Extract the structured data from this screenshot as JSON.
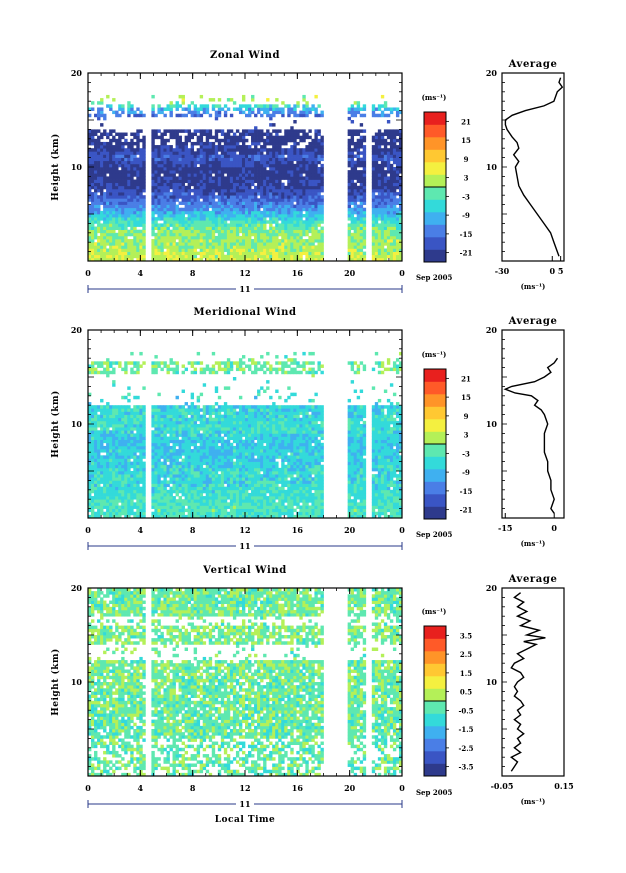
{
  "chart_data": [
    {
      "type": "heatmap",
      "title": "Zonal Wind",
      "ylabel": "Height (km)",
      "xlabel": "",
      "ylim": [
        0,
        20
      ],
      "xlim": [
        0,
        24
      ],
      "x_ticks": [
        "0",
        "4",
        "8",
        "12",
        "16",
        "20",
        "0"
      ],
      "x_tick_values": [
        0,
        4,
        8,
        12,
        16,
        20,
        24
      ],
      "y_ticks": [
        "20",
        "10"
      ],
      "day_label": "11",
      "date_label": "Sep 2005",
      "colorbar": {
        "unit": "(ms⁻¹)",
        "ticks": [
          "21",
          "15",
          "9",
          "3",
          "-3",
          "-9",
          "-15",
          "-21"
        ],
        "range": [
          -24,
          24
        ]
      },
      "data_gaps_hours": [
        [
          4.4,
          4.9
        ],
        [
          18.0,
          19.8
        ],
        [
          21.3,
          21.6
        ]
      ],
      "profile_by_height_km": [
        {
          "height": 0,
          "value": 4
        },
        {
          "height": 1,
          "value": 2
        },
        {
          "height": 2,
          "value": 1
        },
        {
          "height": 3,
          "value": 0
        },
        {
          "height": 4,
          "value": -3
        },
        {
          "height": 5,
          "value": -9
        },
        {
          "height": 6,
          "value": -14
        },
        {
          "height": 7,
          "value": -18
        },
        {
          "height": 8,
          "value": -21
        },
        {
          "height": 9,
          "value": -22
        },
        {
          "height": 10,
          "value": -22
        },
        {
          "height": 11,
          "value": -17
        },
        {
          "height": 12,
          "value": -22
        },
        {
          "height": 13,
          "value": -23
        },
        {
          "height": 14,
          "value": -22
        },
        {
          "height": 15,
          "value": -18
        },
        {
          "height": 16,
          "value": -12
        },
        {
          "height": 17,
          "value": 1
        },
        {
          "height": 18,
          "value": 3
        }
      ],
      "average_panel": {
        "title": "Average",
        "xlabel": "(ms⁻¹)",
        "x_ticks": [
          "-30",
          "0",
          "5"
        ],
        "xlim": [
          -30,
          7
        ],
        "y_ticks": [
          "20",
          "10"
        ],
        "ylim": [
          0,
          20
        ],
        "line": [
          {
            "height": 0.5,
            "value": 4
          },
          {
            "height": 1,
            "value": 3
          },
          {
            "height": 2,
            "value": 1
          },
          {
            "height": 3,
            "value": -1
          },
          {
            "height": 4,
            "value": -5
          },
          {
            "height": 5,
            "value": -9
          },
          {
            "height": 6,
            "value": -13
          },
          {
            "height": 7,
            "value": -17
          },
          {
            "height": 8,
            "value": -20
          },
          {
            "height": 9,
            "value": -21
          },
          {
            "height": 10,
            "value": -22
          },
          {
            "height": 10.6,
            "value": -20
          },
          {
            "height": 11.3,
            "value": -23
          },
          {
            "height": 12,
            "value": -20
          },
          {
            "height": 12.6,
            "value": -21
          },
          {
            "height": 13.2,
            "value": -24
          },
          {
            "height": 14,
            "value": -27
          },
          {
            "height": 14.5,
            "value": -28
          },
          {
            "height": 15,
            "value": -28
          },
          {
            "height": 15.5,
            "value": -24
          },
          {
            "height": 16,
            "value": -16
          },
          {
            "height": 16.5,
            "value": -5
          },
          {
            "height": 17,
            "value": 1
          },
          {
            "height": 17.5,
            "value": 2
          },
          {
            "height": 18,
            "value": 3
          },
          {
            "height": 18.5,
            "value": 6
          },
          {
            "height": 19,
            "value": 4
          },
          {
            "height": 19.5,
            "value": 5
          }
        ]
      }
    },
    {
      "type": "heatmap",
      "title": "Meridional Wind",
      "ylabel": "Height (km)",
      "xlabel": "",
      "ylim": [
        0,
        20
      ],
      "xlim": [
        0,
        24
      ],
      "x_ticks": [
        "0",
        "4",
        "8",
        "12",
        "16",
        "20",
        "0"
      ],
      "x_tick_values": [
        0,
        4,
        8,
        12,
        16,
        20,
        24
      ],
      "y_ticks": [
        "20",
        "10"
      ],
      "day_label": "11",
      "date_label": "Sep 2005",
      "colorbar": {
        "unit": "(ms⁻¹)",
        "ticks": [
          "21",
          "15",
          "9",
          "3",
          "-3",
          "-9",
          "-15",
          "-21"
        ],
        "range": [
          -24,
          24
        ]
      },
      "data_gaps_hours": [
        [
          4.4,
          4.9
        ],
        [
          18.0,
          19.8
        ],
        [
          21.3,
          21.6
        ]
      ],
      "profile_by_height_km": [
        {
          "height": 0,
          "value": -4
        },
        {
          "height": 1,
          "value": -3
        },
        {
          "height": 2,
          "value": -4
        },
        {
          "height": 3,
          "value": -5
        },
        {
          "height": 4,
          "value": -6
        },
        {
          "height": 5,
          "value": -6
        },
        {
          "height": 6,
          "value": -7
        },
        {
          "height": 7,
          "value": -7
        },
        {
          "height": 8,
          "value": -8
        },
        {
          "height": 9,
          "value": -6
        },
        {
          "height": 10,
          "value": -5
        },
        {
          "height": 11,
          "value": -6
        },
        {
          "height": 12,
          "value": -6
        },
        {
          "height": 13,
          "value": -5
        },
        {
          "height": 14,
          "value": -4
        },
        {
          "height": 15,
          "value": -3
        },
        {
          "height": 16,
          "value": -1
        },
        {
          "height": 17,
          "value": -2
        },
        {
          "height": 18,
          "value": -1
        }
      ],
      "average_panel": {
        "title": "Average",
        "xlabel": "(ms⁻¹)",
        "x_ticks": [
          "-15",
          "0"
        ],
        "xlim": [
          -16,
          3
        ],
        "y_ticks": [
          "20",
          "10"
        ],
        "ylim": [
          0,
          20
        ],
        "line": [
          {
            "height": 0.5,
            "value": 0
          },
          {
            "height": 1,
            "value": -1
          },
          {
            "height": 2,
            "value": 0
          },
          {
            "height": 3,
            "value": -1
          },
          {
            "height": 4,
            "value": -1
          },
          {
            "height": 5,
            "value": -2
          },
          {
            "height": 6,
            "value": -2
          },
          {
            "height": 7,
            "value": -3
          },
          {
            "height": 8,
            "value": -3
          },
          {
            "height": 9,
            "value": -3
          },
          {
            "height": 10,
            "value": -2
          },
          {
            "height": 11,
            "value": -3
          },
          {
            "height": 11.5,
            "value": -4
          },
          {
            "height": 12,
            "value": -6
          },
          {
            "height": 12.5,
            "value": -5
          },
          {
            "height": 13,
            "value": -7
          },
          {
            "height": 13.3,
            "value": -12
          },
          {
            "height": 13.7,
            "value": -15
          },
          {
            "height": 14,
            "value": -13
          },
          {
            "height": 14.5,
            "value": -6
          },
          {
            "height": 15,
            "value": -3
          },
          {
            "height": 15.5,
            "value": -1
          },
          {
            "height": 16,
            "value": -2
          },
          {
            "height": 16.5,
            "value": 0
          },
          {
            "height": 17,
            "value": 1
          }
        ]
      }
    },
    {
      "type": "heatmap",
      "title": "Vertical Wind",
      "ylabel": "Height (km)",
      "xlabel": "Local Time",
      "ylim": [
        0,
        20
      ],
      "xlim": [
        0,
        24
      ],
      "x_ticks": [
        "0",
        "4",
        "8",
        "12",
        "16",
        "20",
        "0"
      ],
      "x_tick_values": [
        0,
        4,
        8,
        12,
        16,
        20,
        24
      ],
      "y_ticks": [
        "20",
        "10"
      ],
      "day_label": "11",
      "date_label": "Sep 2005",
      "colorbar": {
        "unit": "(ms⁻¹)",
        "ticks": [
          "3.5",
          "2.5",
          "1.5",
          "0.5",
          "-0.5",
          "-1.5",
          "-2.5",
          "-3.5"
        ],
        "range": [
          -4,
          4
        ]
      },
      "data_gaps_hours": [
        [
          4.4,
          4.9
        ],
        [
          18.0,
          19.8
        ],
        [
          21.3,
          21.6
        ]
      ],
      "profile_by_height_km": [
        {
          "height": 0,
          "value": -0.3
        },
        {
          "height": 5,
          "value": -0.3
        },
        {
          "height": 10,
          "value": -0.2
        },
        {
          "height": 15,
          "value": -0.1
        },
        {
          "height": 20,
          "value": -0.2
        }
      ],
      "average_panel": {
        "title": "Average",
        "xlabel": "(ms⁻¹)",
        "x_ticks": [
          "-0.05",
          "0.15"
        ],
        "xlim": [
          -0.05,
          0.15
        ],
        "y_ticks": [
          "20",
          "10"
        ],
        "ylim": [
          0,
          20
        ],
        "line": [
          {
            "height": 0.5,
            "value": -0.02
          },
          {
            "height": 1,
            "value": -0.01
          },
          {
            "height": 1.5,
            "value": 0.0
          },
          {
            "height": 2,
            "value": -0.02
          },
          {
            "height": 2.5,
            "value": 0.01
          },
          {
            "height": 3,
            "value": -0.01
          },
          {
            "height": 3.5,
            "value": 0.01
          },
          {
            "height": 4,
            "value": 0.0
          },
          {
            "height": 4.5,
            "value": 0.02
          },
          {
            "height": 5,
            "value": 0.0
          },
          {
            "height": 5.5,
            "value": 0.01
          },
          {
            "height": 6,
            "value": -0.01
          },
          {
            "height": 6.5,
            "value": 0.01
          },
          {
            "height": 7,
            "value": 0.0
          },
          {
            "height": 7.5,
            "value": 0.02
          },
          {
            "height": 8,
            "value": 0.01
          },
          {
            "height": 8.5,
            "value": -0.01
          },
          {
            "height": 9,
            "value": 0.0
          },
          {
            "height": 9.5,
            "value": -0.01
          },
          {
            "height": 10,
            "value": 0.0
          },
          {
            "height": 10.5,
            "value": 0.02
          },
          {
            "height": 11,
            "value": 0.01
          },
          {
            "height": 11.5,
            "value": -0.02
          },
          {
            "height": 12,
            "value": -0.01
          },
          {
            "height": 12.5,
            "value": 0.02
          },
          {
            "height": 13,
            "value": 0.0
          },
          {
            "height": 13.5,
            "value": 0.03
          },
          {
            "height": 14,
            "value": 0.06
          },
          {
            "height": 14.3,
            "value": 0.02
          },
          {
            "height": 14.7,
            "value": 0.09
          },
          {
            "height": 15,
            "value": 0.03
          },
          {
            "height": 15.5,
            "value": 0.07
          },
          {
            "height": 16,
            "value": 0.01
          },
          {
            "height": 16.5,
            "value": 0.04
          },
          {
            "height": 17,
            "value": 0.0
          },
          {
            "height": 17.5,
            "value": 0.03
          },
          {
            "height": 18,
            "value": 0.0
          },
          {
            "height": 18.5,
            "value": 0.02
          },
          {
            "height": 19,
            "value": -0.01
          },
          {
            "height": 19.5,
            "value": 0.01
          }
        ]
      }
    }
  ],
  "colors": {
    "colorbar_steps": [
      "#2e3a8c",
      "#3a55c4",
      "#4a7ee6",
      "#3fb0f0",
      "#33dada",
      "#5ee8b0",
      "#b4f058",
      "#f4f040",
      "#ffc832",
      "#ff9428",
      "#ff5a28",
      "#e8201e"
    ],
    "contour": "#000000",
    "axis": "#000000",
    "nav_line": "#2a3a8a"
  }
}
